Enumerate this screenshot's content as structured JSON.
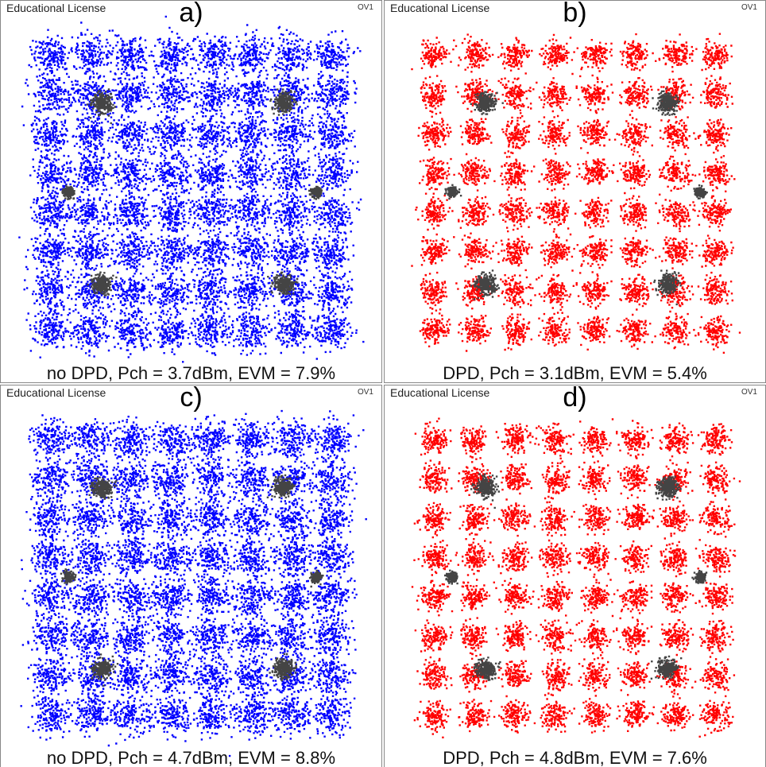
{
  "panels": [
    {
      "license": "Educational License",
      "tag": "OV1",
      "label": "a)",
      "caption": "no DPD, Pch = 3.7dBm, EVM = 7.9%",
      "color": "#0000ff"
    },
    {
      "license": "Educational License",
      "tag": "OV1",
      "label": "b)",
      "caption": "DPD, Pch = 3.1dBm, EVM = 5.4%",
      "color": "#ff0000"
    },
    {
      "license": "Educational License",
      "tag": "OV1",
      "label": "c)",
      "caption": "no DPD, Pch = 4.7dBm, EVM = 8.8%",
      "color": "#0000ff"
    },
    {
      "license": "Educational License",
      "tag": "OV1",
      "label": "d)",
      "caption": "DPD, Pch = 4.8dBm, EVM = 7.6%",
      "color": "#ff0000"
    }
  ]
}
